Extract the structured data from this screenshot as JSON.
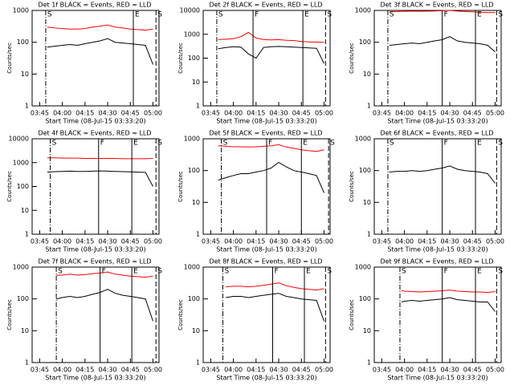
{
  "chart_data": [
    {
      "type": "line",
      "title": "Det 1f BLACK = Events, RED = LLD",
      "y_label": "Counts/sec",
      "x_label": "Start Time (08-Jul-15 03:33:20)",
      "log_y": true,
      "ylim": [
        1,
        1000
      ],
      "yticks": [
        1,
        10,
        100,
        1000
      ],
      "xlim": [
        "03:40",
        "05:04"
      ],
      "xticks": [
        "03:45",
        "04:00",
        "04:15",
        "04:30",
        "04:45",
        "05:00"
      ],
      "x": [
        "03:50",
        "03:55",
        "04:00",
        "04:05",
        "04:10",
        "04:15",
        "04:20",
        "04:25",
        "04:30",
        "04:35",
        "04:40",
        "04:45",
        "04:50",
        "04:55",
        "05:00"
      ],
      "series": [
        {
          "color": "#000000",
          "values": [
            70,
            75,
            80,
            85,
            80,
            90,
            100,
            110,
            130,
            100,
            95,
            90,
            85,
            80,
            20
          ]
        },
        {
          "color": "#ff0000",
          "values": [
            300,
            280,
            270,
            260,
            260,
            270,
            300,
            320,
            350,
            300,
            280,
            260,
            250,
            240,
            260
          ]
        }
      ],
      "markers": [
        {
          "label": "S",
          "x": "03:49",
          "style": "dashdot"
        },
        {
          "label": "E",
          "x": "04:47",
          "style": "solid"
        },
        {
          "label": "S",
          "x": "05:02",
          "style": "dashed"
        }
      ]
    },
    {
      "type": "line",
      "title": "Det 2f BLACK = Events, RED = LLD",
      "y_label": "Counts/sec",
      "x_label": "Start Time (08-Jul-15 03:33:20)",
      "log_y": true,
      "ylim": [
        1,
        10000
      ],
      "yticks": [
        1,
        10,
        100,
        1000,
        10000
      ],
      "xlim": [
        "03:40",
        "05:04"
      ],
      "xticks": [
        "03:45",
        "04:00",
        "04:15",
        "04:30",
        "04:45",
        "05:00"
      ],
      "x": [
        "03:50",
        "03:55",
        "04:00",
        "04:05",
        "04:10",
        "04:15",
        "04:20",
        "04:25",
        "04:30",
        "04:35",
        "04:40",
        "04:45",
        "04:50",
        "04:55",
        "05:00"
      ],
      "series": [
        {
          "color": "#000000",
          "values": [
            250,
            280,
            300,
            290,
            150,
            100,
            280,
            300,
            310,
            300,
            290,
            280,
            270,
            260,
            60
          ]
        },
        {
          "color": "#ff0000",
          "values": [
            600,
            620,
            650,
            800,
            1200,
            700,
            600,
            580,
            600,
            560,
            550,
            500,
            480,
            470,
            460
          ]
        }
      ],
      "markers": [
        {
          "label": "S",
          "x": "03:49",
          "style": "dashdot"
        },
        {
          "label": "F",
          "x": "04:13",
          "style": "solid"
        },
        {
          "label": "E",
          "x": "04:46",
          "style": "solid"
        },
        {
          "label": "S",
          "x": "05:01",
          "style": "dashed"
        }
      ]
    },
    {
      "type": "line",
      "title": "Det 3f BLACK = Events, RED = LLD",
      "y_label": "Counts/sec",
      "x_label": "Start Time (08-Jul-15 03:33:20)",
      "log_y": true,
      "ylim": [
        1,
        1000
      ],
      "yticks": [
        1,
        10,
        100,
        1000
      ],
      "xlim": [
        "03:40",
        "05:04"
      ],
      "xticks": [
        "03:45",
        "04:00",
        "04:15",
        "04:30",
        "04:45",
        "05:00"
      ],
      "x": [
        "03:50",
        "03:55",
        "04:00",
        "04:05",
        "04:10",
        "04:15",
        "04:20",
        "04:25",
        "04:30",
        "04:35",
        "04:40",
        "04:45",
        "04:50",
        "04:55",
        "05:00"
      ],
      "series": [
        {
          "color": "#000000",
          "values": [
            80,
            85,
            90,
            95,
            90,
            100,
            110,
            120,
            150,
            110,
            100,
            95,
            90,
            80,
            50
          ]
        },
        {
          "color": "#ff0000",
          "values": [
            900,
            920,
            940,
            950,
            940,
            950,
            960,
            980,
            1000,
            950,
            920,
            900,
            880,
            850,
            860
          ]
        }
      ],
      "markers": [
        {
          "label": "S",
          "x": "03:49",
          "style": "dashdot"
        },
        {
          "label": "F",
          "x": "04:25",
          "style": "solid"
        },
        {
          "label": "E",
          "x": "04:47",
          "style": "solid"
        },
        {
          "label": "S",
          "x": "05:01",
          "style": "dashed"
        }
      ]
    },
    {
      "type": "line",
      "title": "Det 4f BLACK = Events, RED = LLD",
      "y_label": "Counts/sec",
      "x_label": "Start Time (08-Jul-15 03:33:20)",
      "log_y": true,
      "ylim": [
        1,
        10000
      ],
      "yticks": [
        1,
        10,
        100,
        1000,
        10000
      ],
      "xlim": [
        "03:40",
        "05:04"
      ],
      "xticks": [
        "03:45",
        "04:00",
        "04:15",
        "04:30",
        "04:45",
        "05:00"
      ],
      "x": [
        "03:50",
        "03:55",
        "04:00",
        "04:05",
        "04:10",
        "04:15",
        "04:20",
        "04:25",
        "04:30",
        "04:35",
        "04:40",
        "04:45",
        "04:50",
        "04:55",
        "05:00"
      ],
      "series": [
        {
          "color": "#000000",
          "values": [
            400,
            420,
            430,
            440,
            430,
            430,
            440,
            450,
            440,
            430,
            420,
            410,
            400,
            390,
            100
          ]
        },
        {
          "color": "#ff0000",
          "values": [
            1600,
            1600,
            1550,
            1550,
            1550,
            1500,
            1500,
            1500,
            1500,
            1500,
            1450,
            1450,
            1450,
            1450,
            1500
          ]
        }
      ],
      "markers": [
        {
          "label": "S",
          "x": "03:52",
          "style": "dashdot"
        },
        {
          "label": "F",
          "x": "04:24",
          "style": "solid"
        },
        {
          "label": "E",
          "x": "04:46",
          "style": "solid"
        },
        {
          "label": "S",
          "x": "05:02",
          "style": "dashed"
        }
      ]
    },
    {
      "type": "line",
      "title": "Det 5f BLACK = Events, RED = LLD",
      "y_label": "Counts/sec",
      "x_label": "Start Time (08-Jul-15 03:33:20)",
      "log_y": true,
      "ylim": [
        1,
        1000
      ],
      "yticks": [
        1,
        10,
        100,
        1000
      ],
      "xlim": [
        "03:40",
        "05:04"
      ],
      "xticks": [
        "03:45",
        "04:00",
        "04:15",
        "04:30",
        "04:45",
        "05:00"
      ],
      "x": [
        "03:50",
        "03:55",
        "04:00",
        "04:05",
        "04:10",
        "04:15",
        "04:20",
        "04:25",
        "04:30",
        "04:35",
        "04:40",
        "04:45",
        "04:50",
        "04:55",
        "05:00"
      ],
      "series": [
        {
          "color": "#000000",
          "values": [
            50,
            60,
            70,
            80,
            80,
            90,
            100,
            120,
            180,
            130,
            100,
            90,
            80,
            70,
            20
          ]
        },
        {
          "color": "#ff0000",
          "values": [
            600,
            580,
            560,
            560,
            550,
            560,
            580,
            600,
            650,
            550,
            500,
            450,
            420,
            400,
            450
          ]
        }
      ],
      "markers": [
        {
          "label": "S",
          "x": "03:52",
          "style": "dashdot"
        },
        {
          "label": "F",
          "x": "04:22",
          "style": "solid"
        },
        {
          "label": "E",
          "x": "04:45",
          "style": "solid"
        },
        {
          "label": "S",
          "x": "05:03",
          "style": "dashed"
        }
      ]
    },
    {
      "type": "line",
      "title": "Det 6f BLACK = Events, RED = LLD",
      "y_label": "Counts/sec",
      "x_label": "Start Time (08-Jul-15 03:33:20)",
      "log_y": true,
      "ylim": [
        1,
        1000
      ],
      "yticks": [
        1,
        10,
        100,
        1000
      ],
      "xlim": [
        "03:40",
        "05:04"
      ],
      "xticks": [
        "03:45",
        "04:00",
        "04:15",
        "04:30",
        "04:45",
        "05:00"
      ],
      "x": [
        "03:50",
        "03:55",
        "04:00",
        "04:05",
        "04:10",
        "04:15",
        "04:20",
        "04:25",
        "04:30",
        "04:35",
        "04:40",
        "04:45",
        "04:50",
        "04:55",
        "05:00"
      ],
      "series": [
        {
          "color": "#000000",
          "values": [
            90,
            95,
            95,
            100,
            95,
            100,
            110,
            120,
            140,
            110,
            100,
            95,
            90,
            80,
            40
          ]
        }
      ],
      "markers": [
        {
          "label": "S",
          "x": "03:49",
          "style": "dashdot"
        },
        {
          "label": "F",
          "x": "04:25",
          "style": "solid"
        },
        {
          "label": "E",
          "x": "04:47",
          "style": "solid"
        },
        {
          "label": "S",
          "x": "05:01",
          "style": "dashed"
        }
      ]
    },
    {
      "type": "line",
      "title": "Det 7f BLACK = Events, RED = LLD",
      "y_label": "Counts/sec",
      "x_label": "Start Time (08-Jul-15 03:33:20)",
      "log_y": true,
      "ylim": [
        1,
        1000
      ],
      "yticks": [
        1,
        10,
        100,
        1000
      ],
      "xlim": [
        "03:40",
        "05:04"
      ],
      "xticks": [
        "03:45",
        "04:00",
        "04:15",
        "04:30",
        "04:45",
        "05:00"
      ],
      "x": [
        "03:56",
        "04:00",
        "04:05",
        "04:10",
        "04:15",
        "04:20",
        "04:25",
        "04:30",
        "04:35",
        "04:40",
        "04:45",
        "04:50",
        "04:55",
        "05:00"
      ],
      "series": [
        {
          "color": "#000000",
          "values": [
            100,
            110,
            120,
            110,
            120,
            140,
            160,
            200,
            150,
            130,
            120,
            110,
            100,
            20
          ]
        },
        {
          "color": "#ff0000",
          "values": [
            550,
            560,
            600,
            560,
            580,
            620,
            650,
            700,
            600,
            560,
            520,
            500,
            480,
            520
          ]
        }
      ],
      "markers": [
        {
          "label": "S",
          "x": "03:56",
          "style": "dashdot"
        },
        {
          "label": "F",
          "x": "04:25",
          "style": "solid"
        },
        {
          "label": "E",
          "x": "04:46",
          "style": "solid"
        },
        {
          "label": "S",
          "x": "05:02",
          "style": "dashed"
        }
      ]
    },
    {
      "type": "line",
      "title": "Det 8f BLACK = Events, RED = LLD",
      "y_label": "Counts/sec",
      "x_label": "Start Time (08-Jul-15 03:33:20)",
      "log_y": true,
      "ylim": [
        1,
        1000
      ],
      "yticks": [
        1,
        10,
        100,
        1000
      ],
      "xlim": [
        "03:40",
        "05:04"
      ],
      "xticks": [
        "03:45",
        "04:00",
        "04:15",
        "04:30",
        "04:45",
        "05:00"
      ],
      "x": [
        "03:55",
        "04:00",
        "04:05",
        "04:10",
        "04:15",
        "04:20",
        "04:25",
        "04:30",
        "04:35",
        "04:40",
        "04:45",
        "04:50",
        "04:55",
        "05:00"
      ],
      "series": [
        {
          "color": "#000000",
          "values": [
            110,
            120,
            120,
            110,
            120,
            130,
            140,
            150,
            120,
            110,
            100,
            95,
            90,
            20
          ]
        },
        {
          "color": "#ff0000",
          "values": [
            240,
            250,
            250,
            240,
            250,
            270,
            290,
            320,
            260,
            230,
            210,
            200,
            190,
            210
          ]
        }
      ],
      "markers": [
        {
          "label": "S",
          "x": "03:53",
          "style": "dashdot"
        },
        {
          "label": "F",
          "x": "04:26",
          "style": "solid"
        },
        {
          "label": "E",
          "x": "04:47",
          "style": "solid"
        },
        {
          "label": "S",
          "x": "05:01",
          "style": "dashed"
        }
      ]
    },
    {
      "type": "line",
      "title": "Det 9f BLACK = Events, RED = LLD",
      "y_label": "Counts/sec",
      "x_label": "Start Time (08-Jul-15 03:33:20)",
      "log_y": true,
      "ylim": [
        1,
        1000
      ],
      "yticks": [
        1,
        10,
        100,
        1000
      ],
      "xlim": [
        "03:40",
        "05:04"
      ],
      "xticks": [
        "03:45",
        "04:00",
        "04:15",
        "04:30",
        "04:45",
        "05:00"
      ],
      "x": [
        "03:58",
        "04:00",
        "04:05",
        "04:10",
        "04:15",
        "04:20",
        "04:25",
        "04:30",
        "04:35",
        "04:40",
        "04:45",
        "04:50",
        "04:55",
        "05:00"
      ],
      "series": [
        {
          "color": "#000000",
          "values": [
            80,
            85,
            90,
            85,
            90,
            95,
            100,
            110,
            95,
            90,
            85,
            80,
            80,
            40
          ]
        },
        {
          "color": "#ff0000",
          "values": [
            180,
            175,
            170,
            165,
            170,
            175,
            180,
            190,
            175,
            170,
            165,
            165,
            160,
            170
          ]
        }
      ],
      "markers": [
        {
          "label": "S",
          "x": "03:57",
          "style": "dashdot"
        },
        {
          "label": "F",
          "x": "04:25",
          "style": "solid"
        },
        {
          "label": "E",
          "x": "04:47",
          "style": "solid"
        },
        {
          "label": "S",
          "x": "05:01",
          "style": "dashed"
        }
      ]
    }
  ]
}
